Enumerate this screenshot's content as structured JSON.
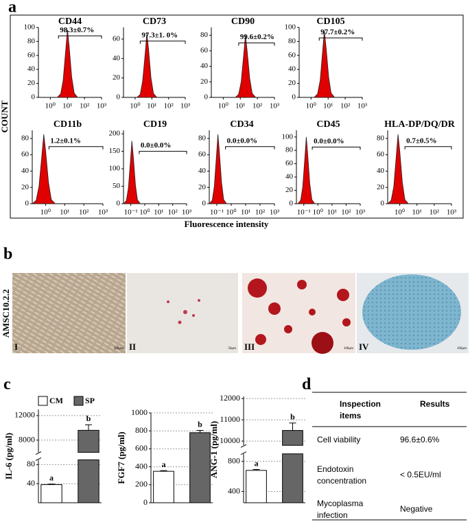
{
  "panel_labels": [
    "a",
    "b",
    "c",
    "d"
  ],
  "figure_a": {
    "y_label": "COUNT",
    "x_label": "Fluorescence intensity"
  },
  "chart_data": [
    {
      "type": "area",
      "title": "CD44",
      "annotation": "98.3±0.7%",
      "color": "#e00000",
      "xscale": "log",
      "x": [
        2.5,
        4,
        5.6,
        8,
        10,
        12.6,
        17.8,
        25,
        40
      ],
      "values": [
        0,
        5,
        24,
        68,
        97,
        73,
        29,
        6,
        0
      ],
      "xlim": [
        0.2,
        1000
      ],
      "xticks": [
        {
          "value": 1,
          "label": "10⁰"
        },
        {
          "value": 10,
          "label": "10¹"
        },
        {
          "value": 100,
          "label": "10²"
        },
        {
          "value": 1000,
          "label": "10³"
        }
      ],
      "ylim": [
        0,
        100
      ],
      "yticks": [
        0,
        20,
        40,
        60,
        80,
        100
      ],
      "gate": {
        "x": [
          3,
          1000
        ],
        "y": 88
      }
    },
    {
      "type": "area",
      "title": "CD73",
      "annotation": "97.3±1. 0%",
      "color": "#e00000",
      "xscale": "log",
      "x": [
        1.25,
        2,
        2.8,
        4,
        5,
        6.3,
        8.9,
        12.5,
        20
      ],
      "values": [
        0,
        3,
        17,
        46,
        66,
        50,
        20,
        4,
        0
      ],
      "xlim": [
        0.2,
        1000
      ],
      "xticks": [
        {
          "value": 1,
          "label": "10⁰"
        },
        {
          "value": 10,
          "label": "10¹"
        },
        {
          "value": 100,
          "label": "10²"
        },
        {
          "value": 1000,
          "label": "10³"
        }
      ],
      "ylim": [
        0,
        72
      ],
      "yticks": [
        0,
        20,
        40,
        60
      ],
      "gate": {
        "x": [
          2,
          1000
        ],
        "y": 58
      }
    },
    {
      "type": "area",
      "title": "CD90",
      "annotation": "99.6±0.2%",
      "color": "#e00000",
      "xscale": "log",
      "x": [
        5,
        8,
        11.2,
        16,
        20,
        25.2,
        35.6,
        50,
        80
      ],
      "values": [
        0,
        4,
        20,
        56,
        80,
        60,
        24,
        5,
        0
      ],
      "xlim": [
        0.2,
        1000
      ],
      "xticks": [
        {
          "value": 1,
          "label": "10⁰"
        },
        {
          "value": 10,
          "label": "10¹"
        },
        {
          "value": 100,
          "label": "10²"
        },
        {
          "value": 1000,
          "label": "10³"
        }
      ],
      "ylim": [
        0,
        90
      ],
      "yticks": [
        0,
        20,
        40,
        60,
        80
      ],
      "gate": {
        "x": [
          8,
          1000
        ],
        "y": 70
      }
    },
    {
      "type": "area",
      "title": "CD105",
      "annotation": "97.7±0.2%",
      "color": "#e00000",
      "xscale": "log",
      "x": [
        1.5,
        2.4,
        3.4,
        4.8,
        6,
        7.6,
        10.7,
        15,
        24
      ],
      "values": [
        0,
        5,
        24,
        67,
        95,
        71,
        29,
        6,
        0
      ],
      "xlim": [
        0.2,
        1000
      ],
      "xticks": [
        {
          "value": 1,
          "label": "10⁰"
        },
        {
          "value": 10,
          "label": "10¹"
        },
        {
          "value": 100,
          "label": "10²"
        },
        {
          "value": 1000,
          "label": "10³"
        }
      ],
      "ylim": [
        0,
        100
      ],
      "yticks": [
        0,
        20,
        40,
        60,
        80,
        100
      ],
      "gate": {
        "x": [
          3,
          1000
        ],
        "y": 85
      }
    },
    {
      "type": "area",
      "title": "CD11b",
      "annotation": "1.2±0.1%",
      "color": "#e00000",
      "xscale": "log",
      "x": [
        0.2,
        0.32,
        0.45,
        0.64,
        0.8,
        1.01,
        1.42,
        2,
        3.2
      ],
      "values": [
        0,
        4,
        21,
        60,
        85,
        64,
        26,
        5,
        0
      ],
      "xlim": [
        0.2,
        1000
      ],
      "xticks": [
        {
          "value": 1,
          "label": "10⁰"
        },
        {
          "value": 10,
          "label": "10¹"
        },
        {
          "value": 100,
          "label": "10²"
        },
        {
          "value": 1000,
          "label": "10³"
        }
      ],
      "ylim": [
        0,
        90
      ],
      "yticks": [
        0,
        20,
        40,
        60,
        80
      ],
      "gate": {
        "x": [
          1.5,
          1000
        ],
        "y": 70
      }
    },
    {
      "type": "area",
      "title": "CD19",
      "annotation": "0.0±0.0%",
      "color": "#e00000",
      "xscale": "log",
      "x": [
        0.03,
        0.048,
        0.067,
        0.096,
        0.12,
        0.151,
        0.214,
        0.3,
        0.48
      ],
      "values": [
        0,
        9,
        45,
        126,
        180,
        135,
        54,
        11,
        0
      ],
      "xlim": [
        0.03,
        1000
      ],
      "xticks": [
        {
          "value": 0.1,
          "label": "10⁻¹"
        },
        {
          "value": 1,
          "label": "10⁰"
        },
        {
          "value": 10,
          "label": "10¹"
        },
        {
          "value": 100,
          "label": "10²"
        },
        {
          "value": 1000,
          "label": "10³"
        }
      ],
      "ylim": [
        0,
        210
      ],
      "yticks": [
        0,
        50,
        100,
        150,
        200
      ],
      "gate": {
        "x": [
          0.4,
          1000
        ],
        "y": 150
      }
    },
    {
      "type": "area",
      "title": "CD34",
      "annotation": "0.0±0.0%",
      "color": "#e00000",
      "xscale": "log",
      "x": [
        0.03,
        0.048,
        0.067,
        0.096,
        0.12,
        0.151,
        0.214,
        0.3,
        0.48
      ],
      "values": [
        0,
        4,
        21,
        60,
        85,
        64,
        26,
        5,
        0
      ],
      "xlim": [
        0.03,
        1000
      ],
      "xticks": [
        {
          "value": 0.1,
          "label": "10⁻¹"
        },
        {
          "value": 1,
          "label": "10⁰"
        },
        {
          "value": 10,
          "label": "10¹"
        },
        {
          "value": 100,
          "label": "10²"
        },
        {
          "value": 1000,
          "label": "10³"
        }
      ],
      "ylim": [
        0,
        90
      ],
      "yticks": [
        0,
        20,
        40,
        60,
        80
      ],
      "gate": {
        "x": [
          0.4,
          1000
        ],
        "y": 70
      }
    },
    {
      "type": "area",
      "title": "CD45",
      "annotation": "0.0±0.0%",
      "color": "#e00000",
      "xscale": "log",
      "x": [
        0.0375,
        0.06,
        0.084,
        0.12,
        0.15,
        0.189,
        0.267,
        0.375,
        0.6
      ],
      "values": [
        0,
        5,
        25,
        70,
        100,
        75,
        30,
        6,
        0
      ],
      "xlim": [
        0.03,
        1000
      ],
      "xticks": [
        {
          "value": 0.1,
          "label": "10⁻¹"
        },
        {
          "value": 1,
          "label": "10⁰"
        },
        {
          "value": 10,
          "label": "10¹"
        },
        {
          "value": 100,
          "label": "10²"
        },
        {
          "value": 1000,
          "label": "10³"
        }
      ],
      "ylim": [
        0,
        110
      ],
      "yticks": [
        0,
        20,
        40,
        60,
        80,
        100
      ],
      "gate": {
        "x": [
          0.4,
          1000
        ],
        "y": 85
      }
    },
    {
      "type": "area",
      "title": "HLA-DP/DQ/DR",
      "annotation": "0.7±0.5%",
      "color": "#e00000",
      "xscale": "log",
      "x": [
        0.2,
        0.32,
        0.45,
        0.64,
        0.8,
        1.01,
        1.42,
        2,
        3.2
      ],
      "values": [
        0,
        4,
        21,
        60,
        85,
        64,
        26,
        5,
        0
      ],
      "xlim": [
        0.2,
        1000
      ],
      "xticks": [
        {
          "value": 1,
          "label": "10⁰"
        },
        {
          "value": 10,
          "label": "10¹"
        },
        {
          "value": 100,
          "label": "10²"
        },
        {
          "value": 1000,
          "label": "10³"
        }
      ],
      "ylim": [
        0,
        90
      ],
      "yticks": [
        0,
        20,
        40,
        60,
        80
      ],
      "gate": {
        "x": [
          2,
          1000
        ],
        "y": 70
      }
    },
    {
      "type": "bar",
      "y_label": "IL-6 (pg/ml)",
      "legend_labels": [
        "CM",
        "SP"
      ],
      "colors": [
        "#ffffff",
        "#666666"
      ],
      "values": [
        38,
        9600
      ],
      "errors": [
        1,
        900
      ],
      "letters": [
        "a",
        "b"
      ],
      "segments": [
        {
          "ylim": [
            0,
            90
          ],
          "yticks": [
            40,
            80
          ]
        },
        {
          "ylim": [
            6000,
            13000
          ],
          "yticks": [
            8000,
            12000
          ]
        }
      ]
    },
    {
      "type": "bar",
      "y_label": "FGF7 (pg/ml)",
      "colors": [
        "#ffffff",
        "#666666"
      ],
      "values": [
        350,
        780
      ],
      "errors": [
        8,
        25
      ],
      "letters": [
        "a",
        "b"
      ],
      "ylim": [
        0,
        1000
      ],
      "yticks": [
        0,
        200,
        400,
        600,
        800,
        1000
      ]
    },
    {
      "type": "bar",
      "y_label": "ANG-1 (pg/ml)",
      "colors": [
        "#ffffff",
        "#666666"
      ],
      "values": [
        680,
        10500
      ],
      "errors": [
        12,
        350
      ],
      "letters": [
        "a",
        "b"
      ],
      "segments": [
        {
          "ylim": [
            250,
            900
          ],
          "yticks": [
            400,
            800
          ]
        },
        {
          "ylim": [
            9800,
            12100
          ],
          "yticks": [
            10000,
            11000,
            12000
          ]
        }
      ]
    }
  ],
  "figure_b": {
    "row_label": "AMSC10.2.2",
    "images": [
      {
        "label": "I",
        "scale": "100μm"
      },
      {
        "label": "II",
        "scale": "50μm"
      },
      {
        "label": "III",
        "scale": "100μm"
      },
      {
        "label": "IV",
        "scale": "100μm"
      }
    ]
  },
  "table": {
    "header": [
      [
        "Inspection",
        "items"
      ],
      [
        "Results"
      ]
    ],
    "rows": [
      [
        [
          "Cell viability"
        ],
        [
          "96.6±0.6%"
        ]
      ],
      [
        [
          "Endotoxin",
          "concentration"
        ],
        [
          "< 0.5EU/ml"
        ]
      ],
      [
        [
          "Mycoplasma",
          "infection"
        ],
        [
          "Negative"
        ]
      ]
    ]
  }
}
